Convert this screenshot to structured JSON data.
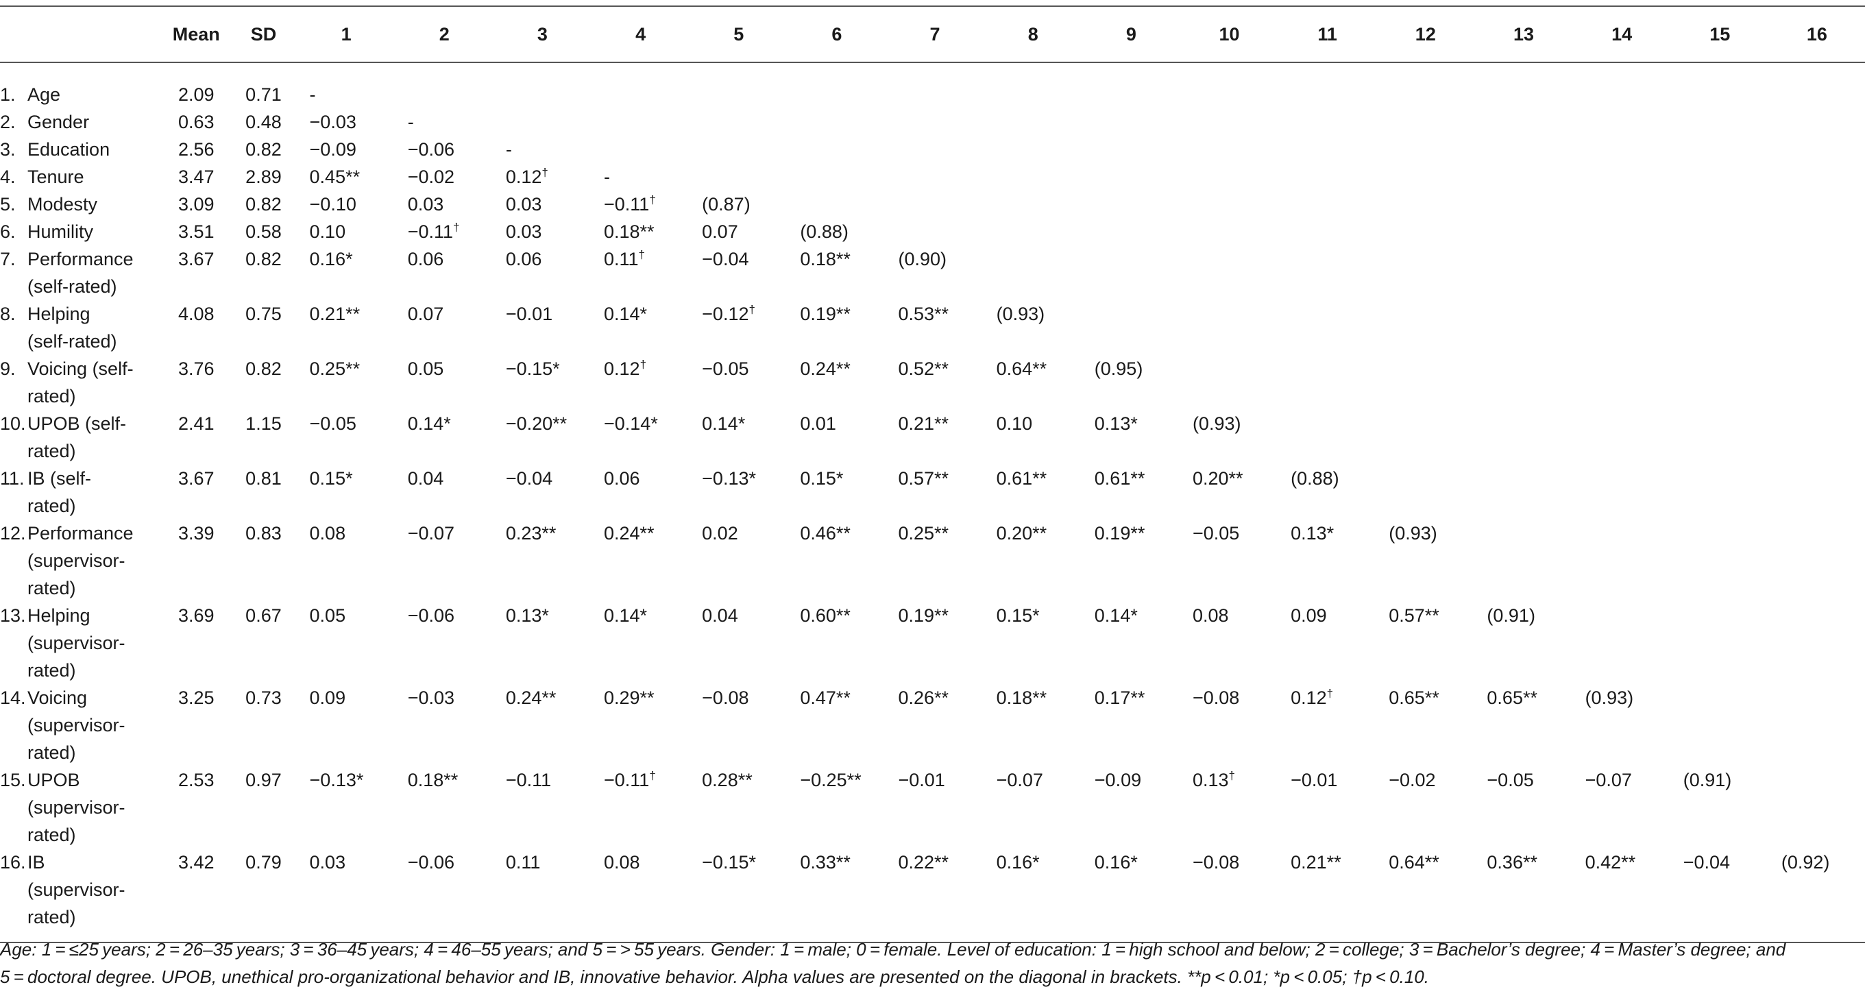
{
  "table": {
    "columns": [
      "",
      "Mean",
      "SD",
      "1",
      "2",
      "3",
      "4",
      "5",
      "6",
      "7",
      "8",
      "9",
      "10",
      "11",
      "12",
      "13",
      "14",
      "15",
      "16"
    ],
    "rows": [
      {
        "num": "1.",
        "label": [
          "Age"
        ],
        "mean": "2.09",
        "sd": "0.71",
        "cells": [
          "-"
        ]
      },
      {
        "num": "2.",
        "label": [
          "Gender"
        ],
        "mean": "0.63",
        "sd": "0.48",
        "cells": [
          "−0.03",
          "-"
        ]
      },
      {
        "num": "3.",
        "label": [
          "Education"
        ],
        "mean": "2.56",
        "sd": "0.82",
        "cells": [
          "−0.09",
          "−0.06",
          "-"
        ]
      },
      {
        "num": "4.",
        "label": [
          "Tenure"
        ],
        "mean": "3.47",
        "sd": "2.89",
        "cells": [
          "0.45**",
          "−0.02",
          "0.12†",
          "-"
        ]
      },
      {
        "num": "5.",
        "label": [
          "Modesty"
        ],
        "mean": "3.09",
        "sd": "0.82",
        "cells": [
          "−0.10",
          "0.03",
          "0.03",
          "−0.11†",
          "(0.87)"
        ]
      },
      {
        "num": "6.",
        "label": [
          "Humility"
        ],
        "mean": "3.51",
        "sd": "0.58",
        "cells": [
          "0.10",
          "−0.11†",
          "0.03",
          "0.18**",
          "0.07",
          "(0.88)"
        ]
      },
      {
        "num": "7.",
        "label": [
          "Performance",
          "(self-rated)"
        ],
        "mean": "3.67",
        "sd": "0.82",
        "cells": [
          "0.16*",
          "0.06",
          "0.06",
          "0.11†",
          "−0.04",
          "0.18**",
          "(0.90)"
        ]
      },
      {
        "num": "8.",
        "label": [
          "Helping",
          "(self-rated)"
        ],
        "mean": "4.08",
        "sd": "0.75",
        "cells": [
          "0.21**",
          "0.07",
          "−0.01",
          "0.14*",
          "−0.12†",
          "0.19**",
          "0.53**",
          "(0.93)"
        ]
      },
      {
        "num": "9.",
        "label": [
          "Voicing (self-",
          "rated)"
        ],
        "mean": "3.76",
        "sd": "0.82",
        "cells": [
          "0.25**",
          "0.05",
          "−0.15*",
          "0.12†",
          "−0.05",
          "0.24**",
          "0.52**",
          "0.64**",
          "(0.95)"
        ]
      },
      {
        "num": "10.",
        "label": [
          "UPOB (self-",
          "rated)"
        ],
        "mean": "2.41",
        "sd": "1.15",
        "cells": [
          "−0.05",
          "0.14*",
          "−0.20**",
          "−0.14*",
          "0.14*",
          "0.01",
          "0.21**",
          "0.10",
          "0.13*",
          "(0.93)"
        ]
      },
      {
        "num": "11.",
        "label": [
          "IB (self-",
          "rated)"
        ],
        "mean": "3.67",
        "sd": "0.81",
        "cells": [
          "0.15*",
          "0.04",
          "−0.04",
          "0.06",
          "−0.13*",
          "0.15*",
          "0.57**",
          "0.61**",
          "0.61**",
          "0.20**",
          "(0.88)"
        ]
      },
      {
        "num": "12.",
        "label": [
          "Performance",
          "(supervisor-",
          "rated)"
        ],
        "mean": "3.39",
        "sd": "0.83",
        "cells": [
          "0.08",
          "−0.07",
          "0.23**",
          "0.24**",
          "0.02",
          "0.46**",
          "0.25**",
          "0.20**",
          "0.19**",
          "−0.05",
          "0.13*",
          "(0.93)"
        ]
      },
      {
        "num": "13.",
        "label": [
          "Helping",
          "(supervisor-",
          "rated)"
        ],
        "mean": "3.69",
        "sd": "0.67",
        "cells": [
          "0.05",
          "−0.06",
          "0.13*",
          "0.14*",
          "0.04",
          "0.60**",
          "0.19**",
          "0.15*",
          "0.14*",
          "0.08",
          "0.09",
          "0.57**",
          "(0.91)"
        ]
      },
      {
        "num": "14.",
        "label": [
          "Voicing",
          "(supervisor-",
          "rated)"
        ],
        "mean": "3.25",
        "sd": "0.73",
        "cells": [
          "0.09",
          "−0.03",
          "0.24**",
          "0.29**",
          "−0.08",
          "0.47**",
          "0.26**",
          "0.18**",
          "0.17**",
          "−0.08",
          "0.12†",
          "0.65**",
          "0.65**",
          "(0.93)"
        ]
      },
      {
        "num": "15.",
        "label": [
          "UPOB",
          "(supervisor-",
          "rated)"
        ],
        "mean": "2.53",
        "sd": "0.97",
        "cells": [
          "−0.13*",
          "0.18**",
          "−0.11",
          "−0.11†",
          "0.28**",
          "−0.25**",
          "−0.01",
          "−0.07",
          "−0.09",
          "0.13†",
          "−0.01",
          "−0.02",
          "−0.05",
          "−0.07",
          "(0.91)"
        ]
      },
      {
        "num": "16.",
        "label": [
          "IB",
          "(supervisor-",
          "rated)"
        ],
        "mean": "3.42",
        "sd": "0.79",
        "cells": [
          "0.03",
          "−0.06",
          "0.11",
          "0.08",
          "−0.15*",
          "0.33**",
          "0.22**",
          "0.16*",
          "0.16*",
          "−0.08",
          "0.21**",
          "0.64**",
          "0.36**",
          "0.42**",
          "−0.04",
          "(0.92)"
        ]
      }
    ]
  },
  "footnote": {
    "lines": [
      "Age: 1 = ≤25 years; 2 = 26–35 years; 3 = 36–45 years; 4 = 46–55 years; and 5 = > 55 years. Gender: 1 = male; 0 = female. Level of education: 1 = high school and below; 2 = college; 3 = Bachelor’s degree; 4 = Master’s degree; and",
      "5 = doctoral degree. UPOB, unethical pro-organizational behavior and IB, innovative behavior. Alpha values are presented on the diagonal in brackets. **p < 0.01; *p < 0.05; †p < 0.10."
    ]
  }
}
